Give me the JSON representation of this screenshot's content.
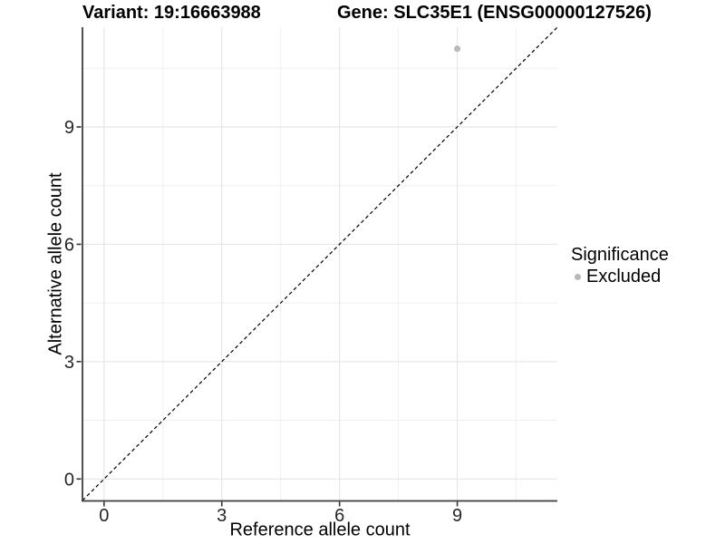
{
  "titles": {
    "variant": "Variant: 19:16663988",
    "gene": "Gene: SLC35E1 (ENSG00000127526)"
  },
  "axes": {
    "x_label": "Reference allele count",
    "y_label": "Alternative allele count"
  },
  "legend": {
    "title": "Significance",
    "items": [
      {
        "label": "Excluded",
        "swatch_color": "#b8b8b8"
      }
    ]
  },
  "colors": {
    "background": "#ffffff",
    "point": "#b8b8b8",
    "grid_major": "#e2e2e2",
    "grid_minor": "#efefef",
    "axis_line": "#3c3c3c",
    "tick_mark": "#333333",
    "tick_text": "#262626",
    "reference_line": "#000000",
    "title_text": "#000000"
  },
  "chart_data": {
    "type": "scatter",
    "title": "Variant: 19:16663988 | Gene: SLC35E1 (ENSG00000127526)",
    "xlabel": "Reference allele count",
    "ylabel": "Alternative allele count",
    "xlim": [
      -0.55,
      11.55
    ],
    "ylim": [
      -0.55,
      11.55
    ],
    "x_ticks": [
      0,
      3,
      6,
      9
    ],
    "y_ticks": [
      0,
      3,
      6,
      9
    ],
    "x_minor_ticks": [
      1.5,
      4.5,
      7.5,
      10.5
    ],
    "y_minor_ticks": [
      1.5,
      4.5,
      7.5,
      10.5
    ],
    "grid": "major and minor, light gray on white",
    "legend_position": "right, middle",
    "series": [
      {
        "name": "Excluded",
        "color": "#b8b8b8",
        "points": [
          {
            "x": 9,
            "y": 11
          }
        ]
      }
    ],
    "reference_line": {
      "kind": "identity y=x",
      "style": "dashed",
      "color": "#000000",
      "from": [
        -0.55,
        -0.55
      ],
      "to": [
        11.55,
        11.55
      ]
    }
  }
}
